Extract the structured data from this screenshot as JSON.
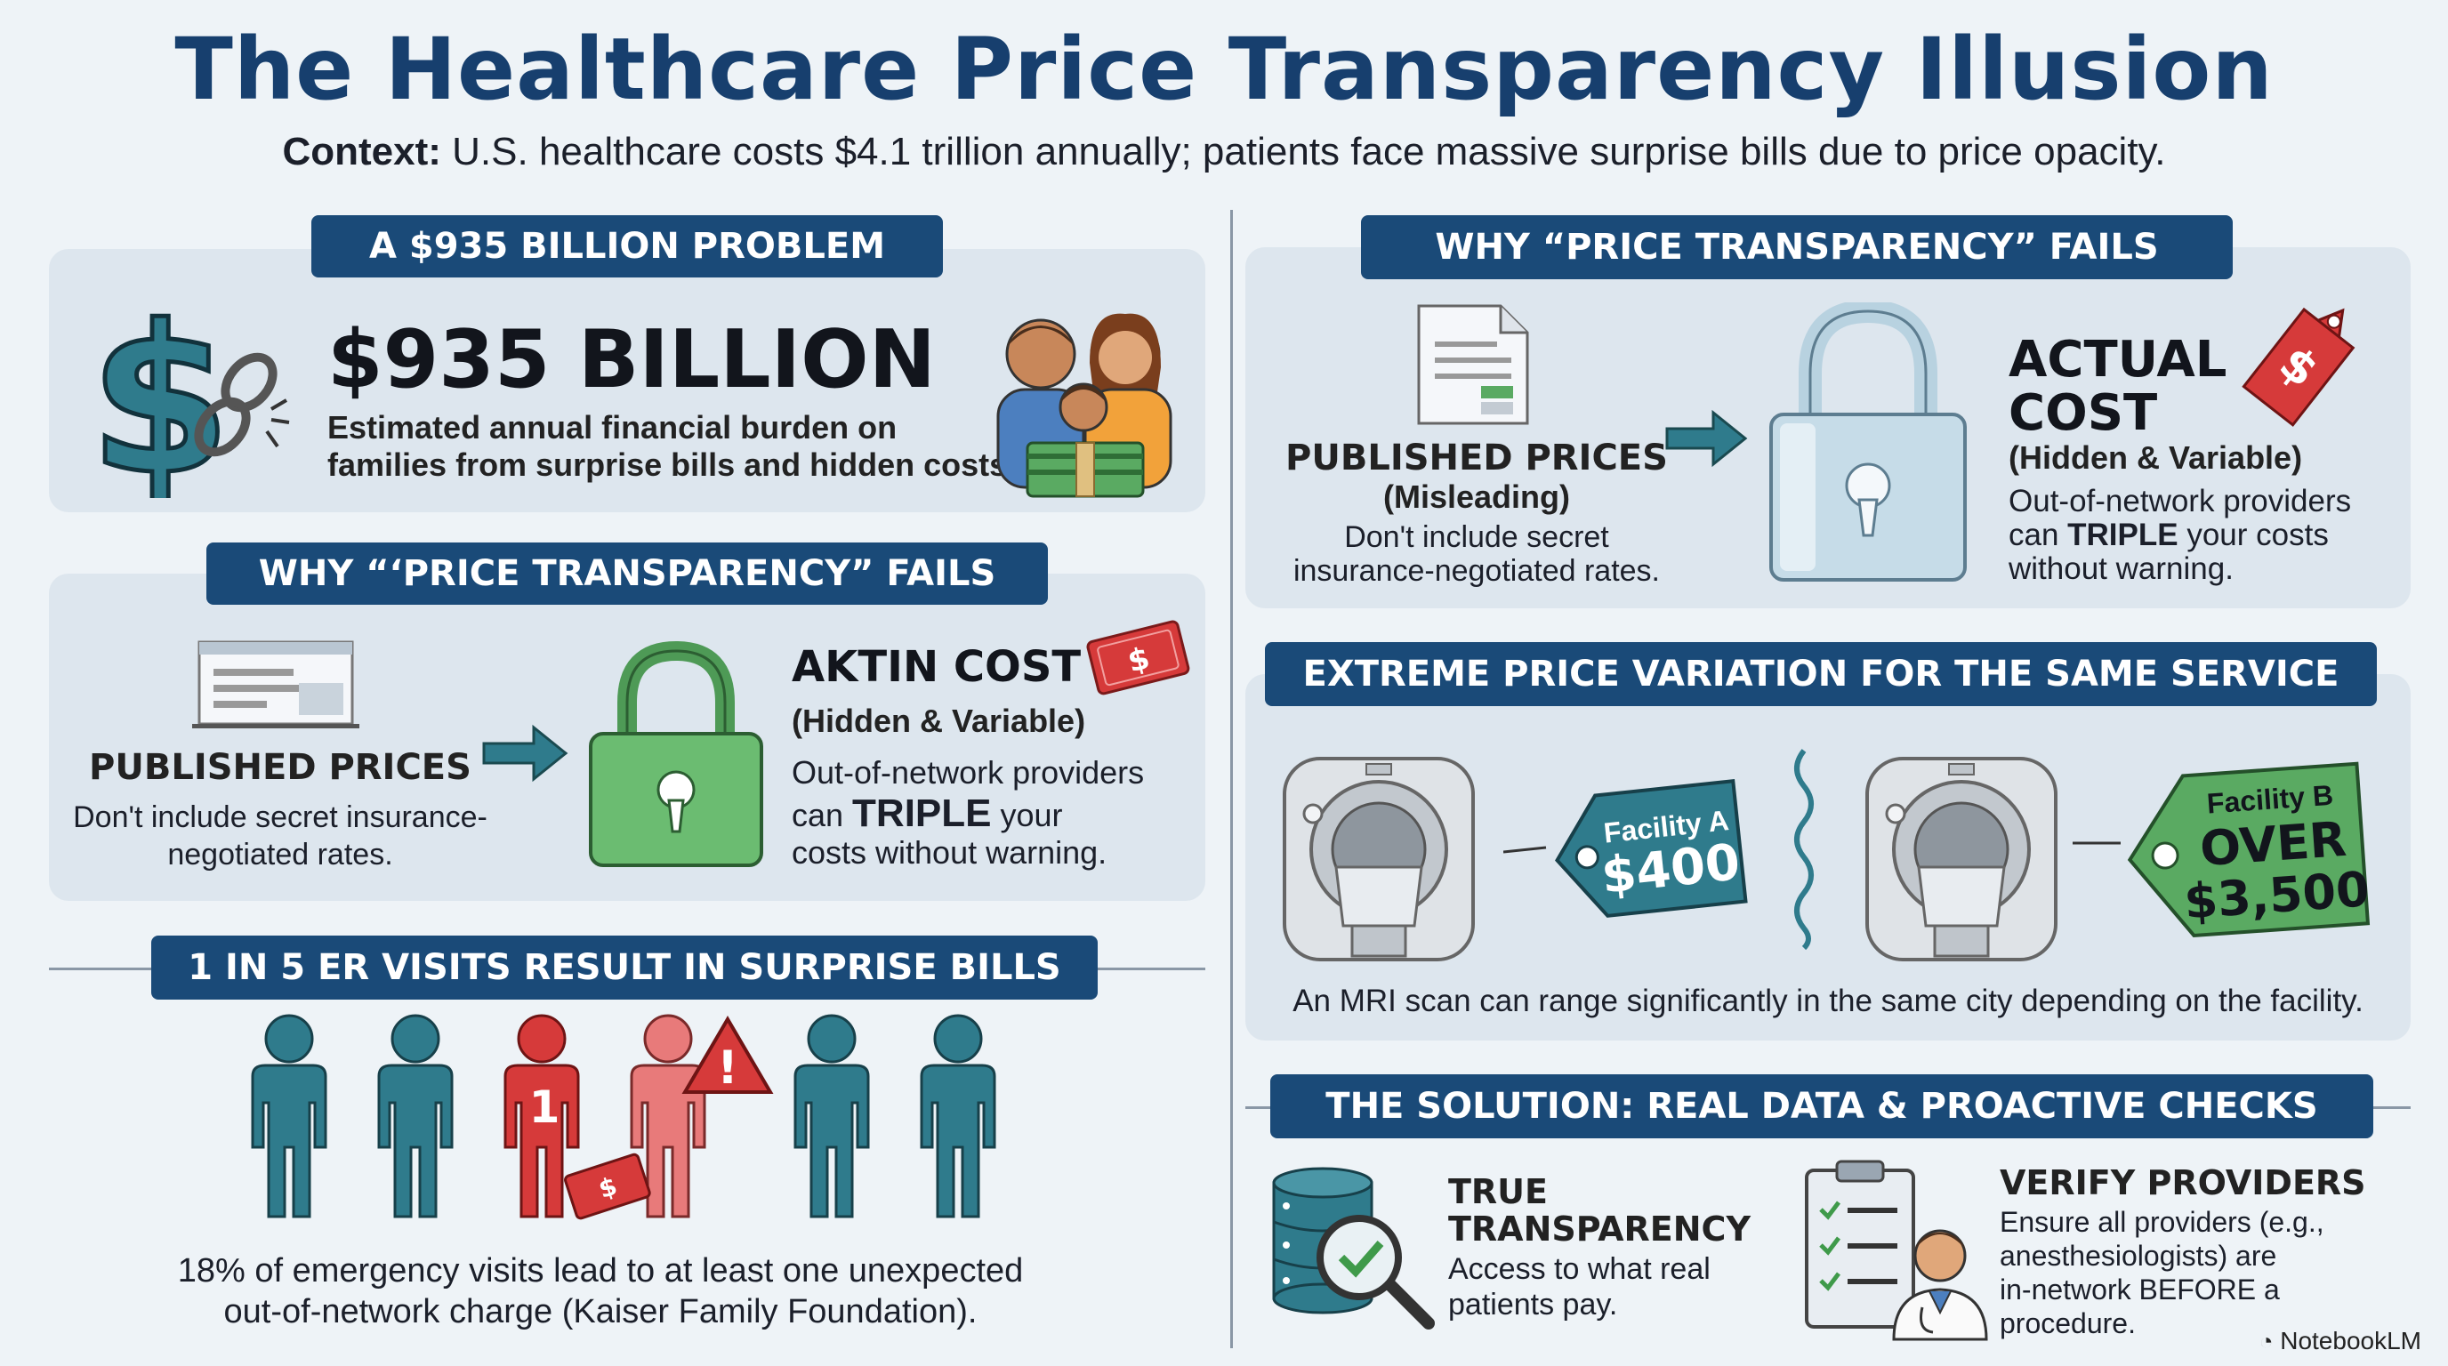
{
  "header": {
    "title": "The Healthcare Price Transparency Illusion",
    "context_label": "Context:",
    "context_text": " U.S. healthcare costs $4.1 trillion annually; patients face massive surprise bills due to price opacity."
  },
  "problem": {
    "banner": "A $935 BILLION PROBLEM",
    "amount": "$935 BILLION",
    "desc_line1": "Estimated annual financial burden on",
    "desc_line2": "families from surprise bills and hidden costs."
  },
  "fails_left": {
    "banner": "WHY “‘PRICE TRANSPARENCY” FAILS",
    "published_title": "PUBLISHED PRICES",
    "published_desc_line1": "Don't include secret insurance-",
    "published_desc_line2": "negotiated rates.",
    "actual_title": "AKTIN COST",
    "actual_sub": "(Hidden & Variable)",
    "actual_desc_line1": "Out-of-network providers",
    "actual_desc_line2_pre": "can ",
    "actual_desc_line2_bold": "TRIPLE",
    "actual_desc_line2_post": " your",
    "actual_desc_line3": "costs without warning.",
    "bill_symbol": "$"
  },
  "er": {
    "banner": "1 IN 5 ER VISITS RESULT IN SURPRISE BILLS",
    "figure_number": "1",
    "alert_symbol": "!",
    "bill_symbol": "$",
    "desc_line1": "18% of emergency visits lead to at least one unexpected",
    "desc_line2": "out-of-network charge (Kaiser Family Foundation)."
  },
  "fails_right": {
    "banner": "WHY “PRICE TRANSPARENCY” FAILS",
    "published_title": "PUBLISHED PRICES",
    "published_sub": "(Misleading)",
    "published_desc_line1": "Don't include secret",
    "published_desc_line2": "insurance-negotiated rates.",
    "actual_title_line1": "ACTUAL",
    "actual_title_line2": "COST",
    "actual_sub": "(Hidden & Variable)",
    "actual_desc_line1": "Out-of-network providers",
    "actual_desc_line2_pre": "can ",
    "actual_desc_line2_bold": "TRIPLE",
    "actual_desc_line2_post": " your costs",
    "actual_desc_line3": "without warning.",
    "tag_symbol": "$"
  },
  "variation": {
    "banner": "EXTREME PRICE VARIATION FOR THE SAME SERVICE",
    "facility_a_label": "Facility A",
    "facility_a_price": "$400",
    "facility_b_label": "Facility B",
    "facility_b_over": "OVER",
    "facility_b_price": "$3,500",
    "caption": "An MRI scan can range significantly in the same city depending on the facility."
  },
  "solution": {
    "banner": "THE SOLUTION: REAL DATA & PROACTIVE CHECKS",
    "true_title_line1": "TRUE",
    "true_title_line2": "TRANSPARENCY",
    "true_desc_line1": "Access to what real",
    "true_desc_line2": "patients pay.",
    "verify_title": "VERIFY PROVIDERS",
    "verify_desc_line1": "Ensure all providers (e.g.,",
    "verify_desc_line2": "anesthesiologists) are",
    "verify_desc_line3": "in-network BEFORE a",
    "verify_desc_line4": "procedure."
  },
  "footer": {
    "brand": "NotebookLM"
  },
  "colors": {
    "navy": "#1a4a78",
    "teal": "#2f7b8c",
    "red": "#d63a3a",
    "green": "#5aaa62"
  }
}
